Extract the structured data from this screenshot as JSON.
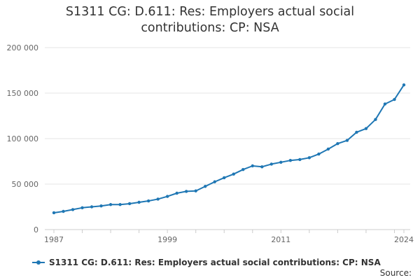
{
  "chart_data": {
    "type": "line",
    "title_lines": [
      "S1311 CG: D.611: Res: Employers actual social",
      "contributions: CP: NSA"
    ],
    "xlabel": "",
    "ylabel": "",
    "x_tick_labels": [
      "1987",
      "1999",
      "2011",
      "2024"
    ],
    "x_tick_values": [
      1987,
      1999,
      2011,
      2024
    ],
    "xlim": [
      1987,
      2024
    ],
    "ylim": [
      0,
      200000
    ],
    "y_ticks": [
      {
        "value": 0,
        "label": "0"
      },
      {
        "value": 50000,
        "label": "50 000"
      },
      {
        "value": 100000,
        "label": "100 000"
      },
      {
        "value": 150000,
        "label": "150 000"
      },
      {
        "value": 200000,
        "label": "200 000"
      }
    ],
    "grid": true,
    "legend_position": "bottom-left",
    "colors": {
      "series": "#1f77b4",
      "grid": "#e6e6e6",
      "axis": "#cccccc"
    },
    "series": [
      {
        "name": "S1311 CG: D.611: Res: Employers actual social contributions: CP: NSA",
        "x": [
          1987,
          1988,
          1989,
          1990,
          1991,
          1992,
          1993,
          1994,
          1995,
          1996,
          1997,
          1998,
          1999,
          2000,
          2001,
          2002,
          2003,
          2004,
          2005,
          2006,
          2007,
          2008,
          2009,
          2010,
          2011,
          2012,
          2013,
          2014,
          2015,
          2016,
          2017,
          2018,
          2019,
          2020,
          2021,
          2022,
          2023,
          2024
        ],
        "values": [
          18500,
          20000,
          22000,
          24000,
          25000,
          26000,
          27500,
          27500,
          28500,
          30000,
          31500,
          33500,
          36500,
          40000,
          42000,
          42500,
          47500,
          52500,
          57000,
          61000,
          66000,
          70000,
          69000,
          72000,
          74000,
          76000,
          77000,
          79000,
          83000,
          88500,
          94500,
          98000,
          107000,
          111000,
          121000,
          138000,
          143000,
          159000
        ]
      }
    ]
  },
  "legend": {
    "label": "S1311 CG: D.611: Res: Employers actual social contributions: CP: NSA"
  },
  "source_label": "Source:"
}
